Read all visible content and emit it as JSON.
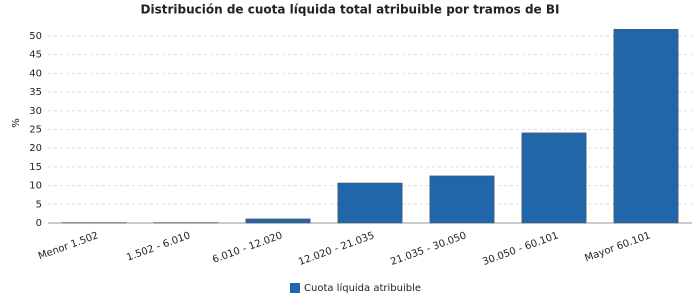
{
  "chart_data": {
    "type": "bar",
    "title": "Distribución de cuota líquida total atribuible por tramos de BI",
    "y_label": "%",
    "categories": [
      "Menor 1.502",
      "1.502 - 6.010",
      "6.010 - 12.020",
      "12.020 - 21.035",
      "21.035 - 30.050",
      "30.050 - 60.101",
      "Mayor 60.101"
    ],
    "series": [
      {
        "name": "Cuota líquida atribuible",
        "color": "#2166a8",
        "values": [
          0.1,
          0.1,
          1.1,
          10.7,
          12.6,
          24.1,
          51.8
        ]
      }
    ],
    "ylim": [
      0,
      52.4
    ],
    "yticks": [
      0,
      5,
      10,
      15,
      20,
      25,
      30,
      35,
      40,
      45,
      50
    ],
    "grid": true,
    "legend": "bottom"
  }
}
